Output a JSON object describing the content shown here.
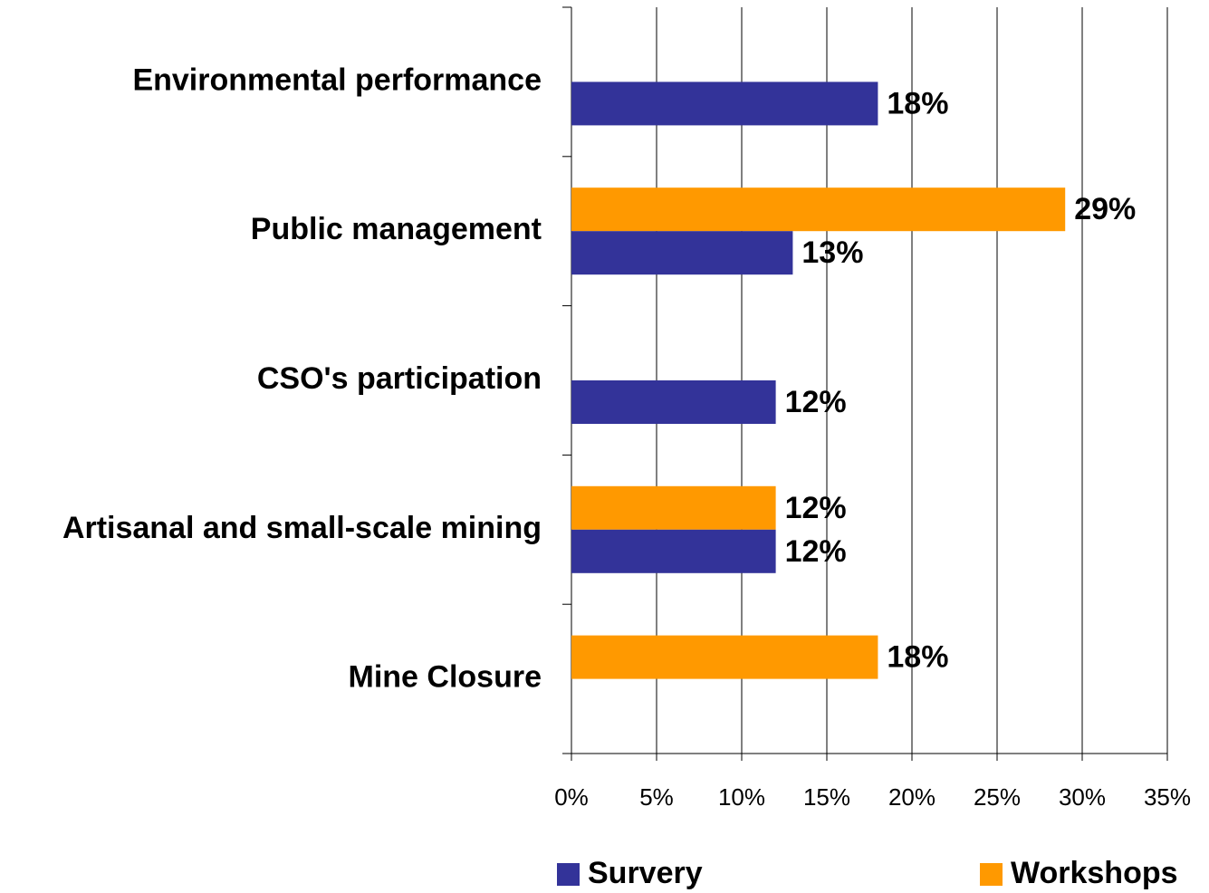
{
  "chart_data": {
    "type": "hbar",
    "categories": [
      "Environmental performance",
      "Public management",
      "CSO's participation",
      "Artisanal and small-scale mining",
      "Mine Closure"
    ],
    "series": [
      {
        "name": "Survery",
        "color": "#333399",
        "values": [
          18,
          13,
          12,
          12,
          null
        ],
        "value_labels": [
          "18%",
          "13%",
          "12%",
          "12%",
          null
        ]
      },
      {
        "name": "Workshops",
        "color": "#ff9900",
        "values": [
          null,
          29,
          null,
          12,
          18
        ],
        "value_labels": [
          null,
          "29%",
          null,
          "12%",
          "18%"
        ]
      }
    ],
    "xlim": [
      0,
      35
    ],
    "xticks": [
      {
        "value": 0,
        "label": "0%"
      },
      {
        "value": 5,
        "label": "5%"
      },
      {
        "value": 10,
        "label": "10%"
      },
      {
        "value": 15,
        "label": "15%"
      },
      {
        "value": 20,
        "label": "20%"
      },
      {
        "value": 25,
        "label": "25%"
      },
      {
        "value": 30,
        "label": "30%"
      },
      {
        "value": 35,
        "label": "35%"
      }
    ],
    "grid": true
  }
}
